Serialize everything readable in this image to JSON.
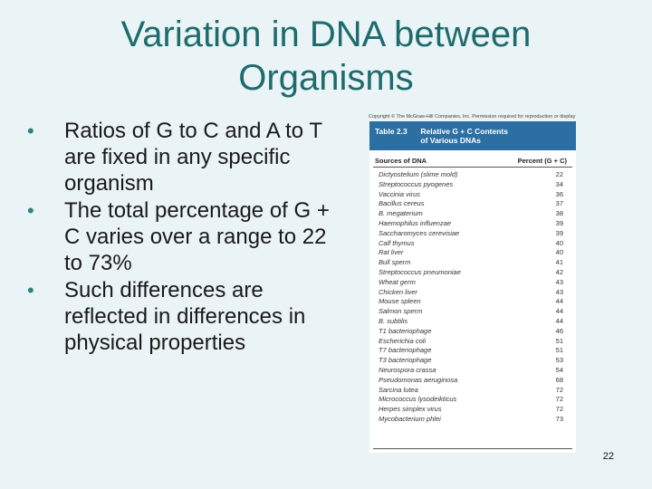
{
  "slide": {
    "title_line1": "Variation in DNA between",
    "title_line2": "Organisms",
    "bullets": [
      "Ratios of G to C and A to T are fixed in any specific organism",
      "The total percentage of G + C varies over a range to 22 to 73%",
      "Such differences are reflected in differences in physical properties"
    ],
    "bullet_glyph": "•",
    "page_number": "22"
  },
  "table": {
    "copyright": "Copyright © The McGraw-Hill Companies, Inc. Permission required for reproduction or display",
    "number": "Table 2.3",
    "title_line1": "Relative G + C Contents",
    "title_line2": "of Various DNAs",
    "col_source": "Sources of DNA",
    "col_percent": "Percent (G + C)",
    "header_color": "#2b6fa3",
    "rows": [
      {
        "source": "Dictyostelium (slime mold)",
        "percent": "22"
      },
      {
        "source": "Streptococcus pyogenes",
        "percent": "34"
      },
      {
        "source": "Vaccinia virus",
        "percent": "36"
      },
      {
        "source": "Bacillus cereus",
        "percent": "37"
      },
      {
        "source": "B. megaterium",
        "percent": "38"
      },
      {
        "source": "Haemophilus influenzae",
        "percent": "39"
      },
      {
        "source": "Saccharomyces cerevisiae",
        "percent": "39"
      },
      {
        "source": "Calf thymus",
        "percent": "40"
      },
      {
        "source": "Rat liver",
        "percent": "40"
      },
      {
        "source": "Bull sperm",
        "percent": "41"
      },
      {
        "source": "Streptococcus pneumoniae",
        "percent": "42"
      },
      {
        "source": "Wheat germ",
        "percent": "43"
      },
      {
        "source": "Chicken liver",
        "percent": "43"
      },
      {
        "source": "Mouse spleen",
        "percent": "44"
      },
      {
        "source": "Salmon sperm",
        "percent": "44"
      },
      {
        "source": "B. subtilis",
        "percent": "44"
      },
      {
        "source": "T1 bacteriophage",
        "percent": "46"
      },
      {
        "source": "Escherichia coli",
        "percent": "51"
      },
      {
        "source": "T7 bacteriophage",
        "percent": "51"
      },
      {
        "source": "T3 bacteriophage",
        "percent": "53"
      },
      {
        "source": "Neurospora crassa",
        "percent": "54"
      },
      {
        "source": "Pseudomonas aeruginosa",
        "percent": "68"
      },
      {
        "source": "Sarcina lutea",
        "percent": "72"
      },
      {
        "source": "Micrococcus lysodeikticus",
        "percent": "72"
      },
      {
        "source": "Herpes simplex virus",
        "percent": "72"
      },
      {
        "source": "Mycobacterium phlei",
        "percent": "73"
      }
    ]
  }
}
